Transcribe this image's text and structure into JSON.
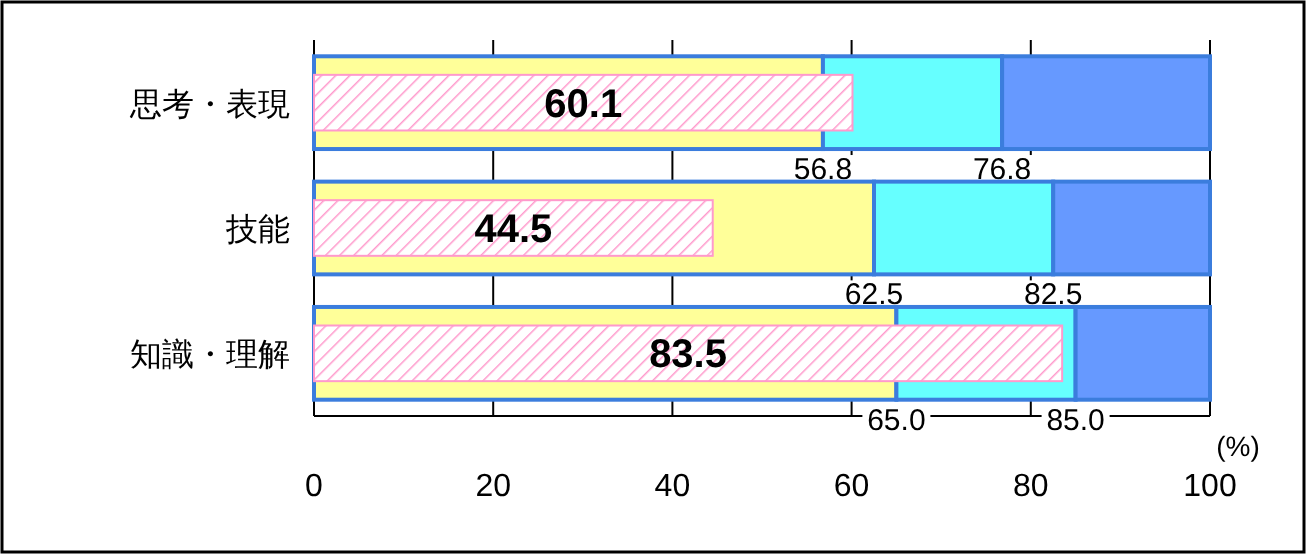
{
  "chart_data": {
    "type": "bar",
    "orientation": "horizontal",
    "categories": [
      "思考・表現",
      "技能",
      "知識・理解"
    ],
    "xlabel": "(%)",
    "xlim": [
      0,
      100
    ],
    "xticks": [
      0,
      20,
      40,
      60,
      80,
      100
    ],
    "grid": "x",
    "series": [
      {
        "color": "#ffff99",
        "base": [
          0,
          0,
          0
        ],
        "values": [
          56.8,
          62.5,
          65.0
        ],
        "value_labels": [
          "56.8",
          "62.5",
          "65.0"
        ]
      },
      {
        "color": "#66ffff",
        "base": [
          56.8,
          62.5,
          65.0
        ],
        "values": [
          20,
          20,
          20
        ],
        "value_labels": [
          "76.8",
          "82.5",
          "85.0"
        ]
      },
      {
        "color": "#6699ff",
        "base": [
          76.8,
          82.5,
          85.0
        ],
        "values": [
          23.2,
          17.5,
          15.0
        ]
      },
      {
        "color": "#ff99cc",
        "values": [
          60.1,
          44.5,
          83.5
        ],
        "value_labels": [
          "60.1",
          "44.5",
          "83.5"
        ]
      }
    ]
  }
}
